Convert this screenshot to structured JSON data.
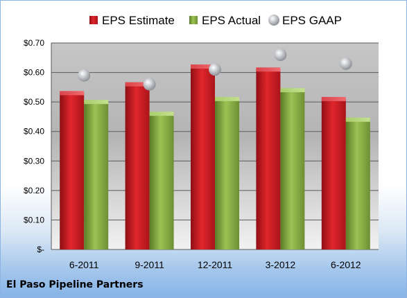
{
  "chart_data": {
    "type": "bar",
    "categories": [
      "6-2011",
      "9-2011",
      "12-2011",
      "3-2012",
      "6-2012"
    ],
    "series": [
      {
        "name": "EPS Estimate",
        "kind": "bar",
        "color": "#c0171d",
        "values": [
          0.53,
          0.56,
          0.62,
          0.61,
          0.51
        ]
      },
      {
        "name": "EPS Actual",
        "kind": "bar",
        "color": "#79a13a",
        "values": [
          0.5,
          0.46,
          0.51,
          0.54,
          0.44
        ]
      },
      {
        "name": "EPS GAAP",
        "kind": "marker",
        "color": "#b9bcc2",
        "values": [
          0.59,
          0.56,
          0.61,
          0.66,
          0.63
        ]
      }
    ],
    "ylim": [
      0,
      0.7
    ],
    "yticks": [
      0,
      0.1,
      0.2,
      0.3,
      0.4,
      0.5,
      0.6,
      0.7
    ],
    "ytick_labels": [
      "$-",
      "$0.10",
      "$0.20",
      "$0.30",
      "$0.40",
      "$0.50",
      "$0.60",
      "$0.70"
    ],
    "grid": true,
    "legend_position": "top",
    "company": "El Paso Pipeline Partners"
  }
}
